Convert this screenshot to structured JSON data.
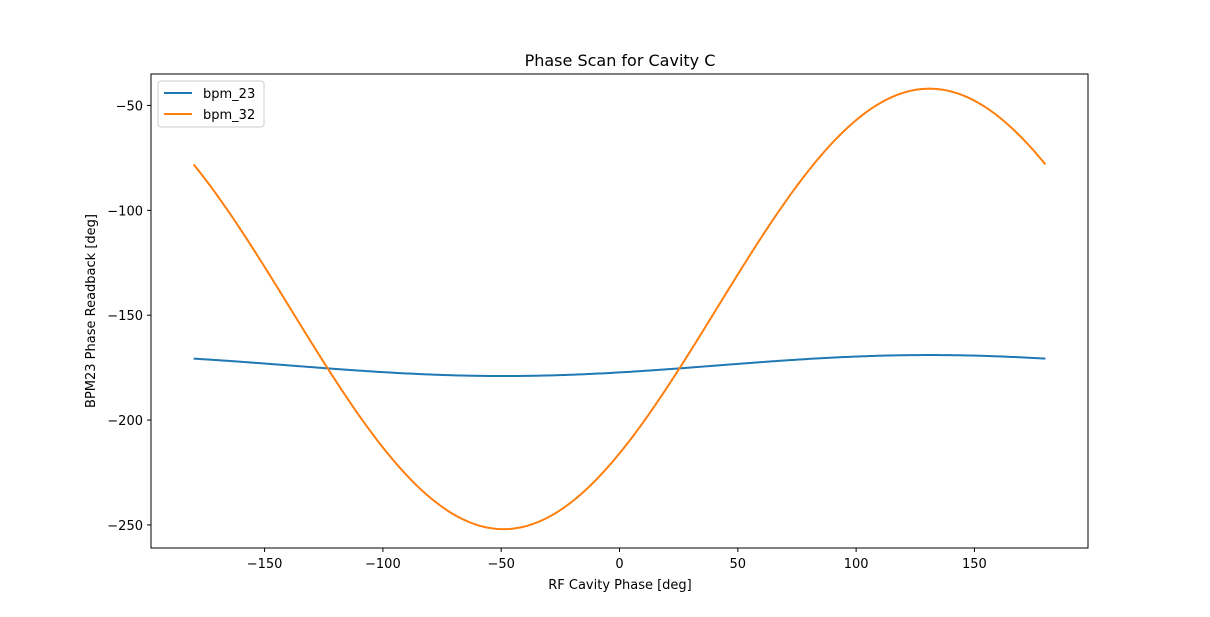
{
  "chart_data": {
    "type": "line",
    "title": "Phase Scan for Cavity C",
    "xlabel": "RF Cavity Phase [deg]",
    "ylabel": "BPM23 Phase Readback [deg]",
    "xlim": [
      -198,
      198
    ],
    "ylim": [
      -261,
      -35
    ],
    "xticks": [
      -150,
      -100,
      -50,
      0,
      50,
      100,
      150
    ],
    "yticks": [
      -250,
      -200,
      -150,
      -100,
      -50
    ],
    "grid": false,
    "legend_position": "upper-left",
    "series": [
      {
        "name": "bpm_23",
        "color": "#1f77b4",
        "model": {
          "offset": -174.0,
          "amplitude": 5.0,
          "peak_x": 131
        },
        "x": [
          -180,
          -150,
          -120,
          -90,
          -60,
          -50,
          -30,
          0,
          30,
          60,
          90,
          120,
          131,
          150,
          180
        ],
        "y": [
          -171.0,
          -173.0,
          -175.4,
          -177.4,
          -178.8,
          -179.0,
          -178.6,
          -177.5,
          -175.5,
          -173.0,
          -170.8,
          -169.2,
          -169.0,
          -169.5,
          -171.0
        ]
      },
      {
        "name": "bpm_32",
        "color": "#ff7f0e",
        "model": {
          "offset": -147.0,
          "amplitude": 105.0,
          "peak_x": 131
        },
        "x": [
          -180,
          -150,
          -120,
          -90,
          -60,
          -49,
          -30,
          0,
          30,
          60,
          90,
          120,
          131,
          150,
          180
        ],
        "y": [
          -78.5,
          -129.0,
          -182.0,
          -227.0,
          -250.0,
          -252.0,
          -242.5,
          -216.0,
          -169.0,
          -113.0,
          -68.0,
          -43.0,
          -42.0,
          -52.0,
          -78.5
        ]
      }
    ]
  }
}
